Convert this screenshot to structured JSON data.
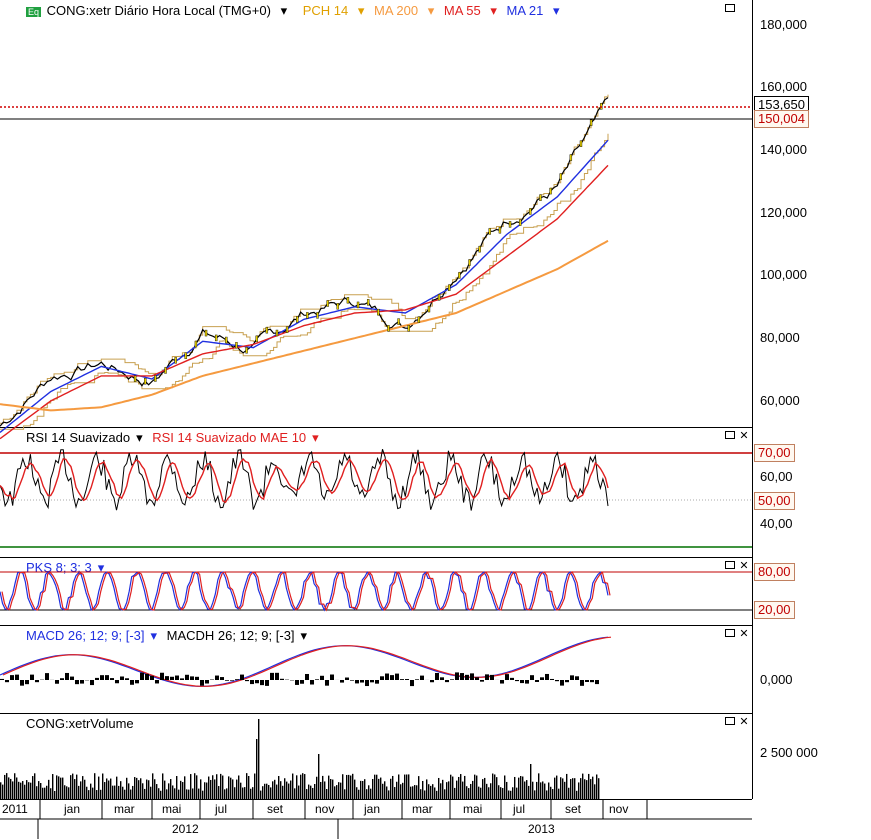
{
  "main_pane": {
    "symbol_badge": "Eq",
    "title": "CONG:xetr Diário Hora Local (TMG+0)",
    "legend": [
      {
        "label": "PCH 14",
        "color": "#e0a000"
      },
      {
        "label": "MA 200",
        "color": "#f59a40"
      },
      {
        "label": "MA 55",
        "color": "#e02020"
      },
      {
        "label": "MA 21",
        "color": "#2030e0"
      }
    ],
    "y_ticks": [
      "180,000",
      "160,000",
      "140,000",
      "120,000",
      "100,000",
      "80,000",
      "60,000"
    ],
    "last_price_tag": "153,650",
    "level_tag": "150,004"
  },
  "rsi_pane": {
    "title": "RSI 14 Suavizado",
    "overlay": "RSI 14 Suavizado MAE 10",
    "y_ticks": [
      "60,00",
      "40,00"
    ],
    "tags": [
      "70,00",
      "50,00"
    ]
  },
  "pks_pane": {
    "title": "PKS 8; 3; 3",
    "tags": [
      "80,00",
      "20,00"
    ]
  },
  "macd_pane": {
    "title": "MACD 26; 12; 9; [-3]",
    "overlay": "MACDH 26; 12; 9; [-3]",
    "y_ticks": [
      "0,000"
    ]
  },
  "volume_pane": {
    "title": "CONG:xetrVolume",
    "y_ticks": [
      "2 500 000"
    ]
  },
  "time_axis": {
    "months": [
      "2011",
      "jan",
      "mar",
      "mai",
      "jul",
      "set",
      "nov",
      "jan",
      "mar",
      "mai",
      "jul",
      "set",
      "nov"
    ],
    "years": [
      "2012",
      "2013"
    ]
  },
  "chart_data": {
    "type": "line",
    "title": "CONG:xetr Diário Hora Local (TMG+0)",
    "x": [
      "2011-11",
      "2012-01",
      "2012-03",
      "2012-05",
      "2012-07",
      "2012-09",
      "2012-11",
      "2013-01",
      "2013-03",
      "2013-05",
      "2013-07",
      "2013-09",
      "2013-11"
    ],
    "ylim": [
      50,
      185
    ],
    "series": [
      {
        "name": "CONG:xetr",
        "values": [
          52,
          68,
          72,
          66,
          82,
          76,
          88,
          92,
          84,
          102,
          118,
          128,
          153.65
        ]
      },
      {
        "name": "MA 21",
        "values": [
          50,
          63,
          71,
          67,
          79,
          77,
          86,
          90,
          88,
          97,
          113,
          125,
          143
        ]
      },
      {
        "name": "MA 55",
        "values": [
          48,
          60,
          68,
          68,
          75,
          78,
          84,
          88,
          89,
          94,
          106,
          118,
          135
        ]
      },
      {
        "name": "MA 200",
        "values": [
          59,
          57,
          58,
          62,
          68,
          72,
          76,
          80,
          84,
          88,
          95,
          102,
          111
        ]
      }
    ],
    "indicators": {
      "rsi_levels": [
        70,
        50
      ],
      "pks_levels": [
        80,
        20
      ],
      "volume_peak": 2500000
    }
  }
}
